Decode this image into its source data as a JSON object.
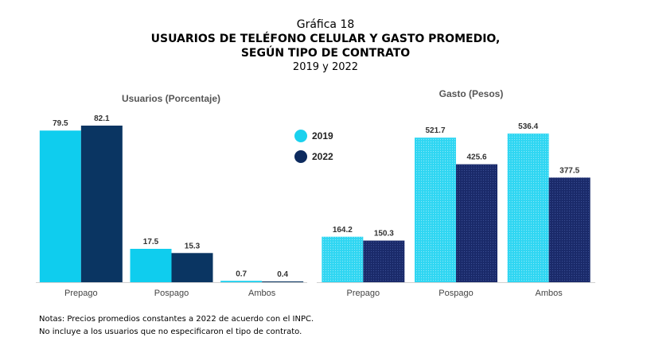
{
  "title": {
    "line1": "Gráfica 18",
    "line2": "USUARIOS DE TELÉFONO CELULAR Y GASTO PROMEDIO,",
    "line3": "SEGÚN TIPO DE CONTRATO",
    "line4": "2019 y 2022"
  },
  "legend": [
    {
      "label": "2019",
      "color": "#1ad1ee"
    },
    {
      "label": "2022",
      "color": "#0d2a5e"
    }
  ],
  "notes": {
    "line1": "Notas: Precios promedios constantes a 2022 de acuerdo con el INPC.",
    "line2": "No incluye a los usuarios que no especificaron el tipo de contrato."
  },
  "chart_data": [
    {
      "type": "bar",
      "title": "Usuarios (Porcentaje)",
      "categories": [
        "Prepago",
        "Pospago",
        "Ambos"
      ],
      "series": [
        {
          "name": "2019",
          "values": [
            79.5,
            17.5,
            0.7
          ],
          "labels": [
            "79.5",
            "17.5",
            "0.7"
          ],
          "color": "#0fcdee"
        },
        {
          "name": "2022",
          "values": [
            82.1,
            15.3,
            0.4
          ],
          "labels": [
            "82.1",
            "15.3",
            "0.4"
          ],
          "color": "#0a3562"
        }
      ],
      "ylim": [
        0,
        82.1
      ]
    },
    {
      "type": "bar",
      "title": "Gasto (Pesos)",
      "categories": [
        "Prepago",
        "Pospago",
        "Ambos"
      ],
      "series": [
        {
          "name": "2019",
          "values": [
            164.2,
            521.7,
            536.4
          ],
          "labels": [
            "164.2",
            "521.7",
            "536.4"
          ],
          "color": "#2fd6f2"
        },
        {
          "name": "2022",
          "values": [
            150.3,
            425.6,
            377.5
          ],
          "labels": [
            "150.3",
            "425.6",
            "377.5"
          ],
          "color": "#1a2a6a"
        }
      ],
      "ylim": [
        0,
        536.4
      ]
    }
  ]
}
